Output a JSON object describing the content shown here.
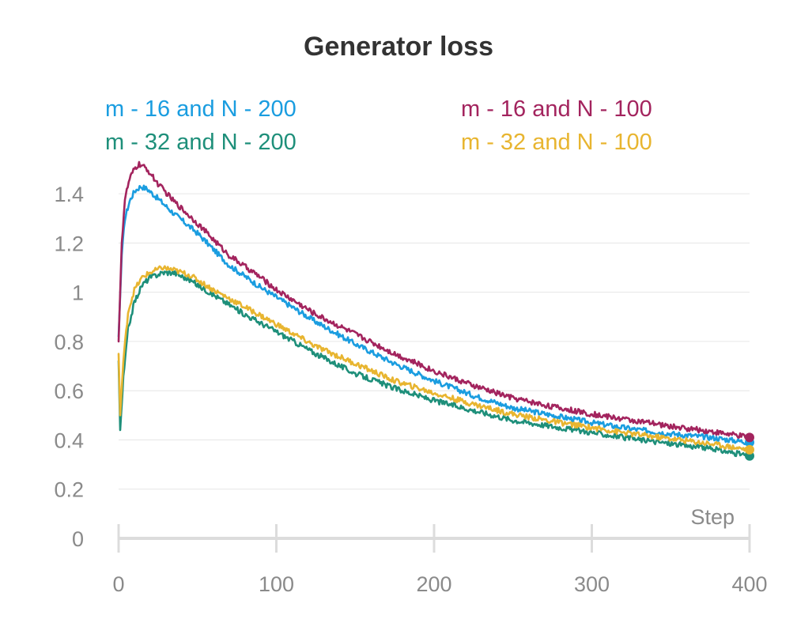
{
  "chart_data": {
    "type": "line",
    "title": "Generator loss",
    "xlabel": "Step",
    "ylabel": "",
    "xlim": [
      0,
      400
    ],
    "ylim": [
      0,
      1.5
    ],
    "x_ticks": [
      0,
      100,
      200,
      300,
      400
    ],
    "y_ticks": [
      0,
      0.2,
      0.4,
      0.6,
      0.8,
      1,
      1.2,
      1.4
    ],
    "x_tick_labels": [
      "0",
      "100",
      "200",
      "300",
      "400"
    ],
    "y_tick_labels": [
      "0",
      "0.2",
      "0.4",
      "0.6",
      "0.8",
      "1",
      "1.2",
      "1.4"
    ],
    "grid": true,
    "legend_position": "top",
    "series": [
      {
        "name": "m - 16 and N - 200",
        "color": "#1a9de0",
        "points": [
          [
            0,
            0.82
          ],
          [
            2,
            1.15
          ],
          [
            4,
            1.3
          ],
          [
            7,
            1.37
          ],
          [
            10,
            1.41
          ],
          [
            14,
            1.43
          ],
          [
            18,
            1.42
          ],
          [
            25,
            1.38
          ],
          [
            35,
            1.32
          ],
          [
            50,
            1.24
          ],
          [
            70,
            1.11
          ],
          [
            90,
            1.02
          ],
          [
            100,
            0.98
          ],
          [
            125,
            0.88
          ],
          [
            150,
            0.79
          ],
          [
            175,
            0.71
          ],
          [
            200,
            0.64
          ],
          [
            225,
            0.58
          ],
          [
            250,
            0.53
          ],
          [
            275,
            0.5
          ],
          [
            300,
            0.47
          ],
          [
            325,
            0.445
          ],
          [
            350,
            0.425
          ],
          [
            375,
            0.41
          ],
          [
            400,
            0.39
          ]
        ]
      },
      {
        "name": "m - 16 and N - 100",
        "color": "#a3245e",
        "points": [
          [
            0,
            0.8
          ],
          [
            2,
            1.2
          ],
          [
            4,
            1.38
          ],
          [
            7,
            1.46
          ],
          [
            10,
            1.5
          ],
          [
            13,
            1.52
          ],
          [
            18,
            1.5
          ],
          [
            25,
            1.44
          ],
          [
            35,
            1.37
          ],
          [
            50,
            1.28
          ],
          [
            70,
            1.15
          ],
          [
            90,
            1.06
          ],
          [
            100,
            1.01
          ],
          [
            125,
            0.91
          ],
          [
            150,
            0.83
          ],
          [
            175,
            0.75
          ],
          [
            200,
            0.68
          ],
          [
            225,
            0.62
          ],
          [
            250,
            0.57
          ],
          [
            275,
            0.535
          ],
          [
            300,
            0.505
          ],
          [
            325,
            0.48
          ],
          [
            350,
            0.455
          ],
          [
            375,
            0.435
          ],
          [
            400,
            0.41
          ]
        ]
      },
      {
        "name": "m - 32 and N - 200",
        "color": "#1e8f7a",
        "points": [
          [
            0,
            0.72
          ],
          [
            1,
            0.44
          ],
          [
            3,
            0.65
          ],
          [
            6,
            0.85
          ],
          [
            10,
            0.96
          ],
          [
            15,
            1.03
          ],
          [
            20,
            1.06
          ],
          [
            28,
            1.08
          ],
          [
            35,
            1.08
          ],
          [
            45,
            1.05
          ],
          [
            60,
            0.99
          ],
          [
            80,
            0.91
          ],
          [
            100,
            0.84
          ],
          [
            125,
            0.75
          ],
          [
            150,
            0.67
          ],
          [
            175,
            0.61
          ],
          [
            200,
            0.56
          ],
          [
            225,
            0.52
          ],
          [
            250,
            0.48
          ],
          [
            275,
            0.455
          ],
          [
            300,
            0.43
          ],
          [
            325,
            0.405
          ],
          [
            350,
            0.385
          ],
          [
            375,
            0.365
          ],
          [
            400,
            0.335
          ]
        ]
      },
      {
        "name": "m - 32 and N - 100",
        "color": "#e8b530",
        "points": [
          [
            0,
            0.75
          ],
          [
            1,
            0.5
          ],
          [
            3,
            0.72
          ],
          [
            6,
            0.92
          ],
          [
            10,
            1.01
          ],
          [
            15,
            1.06
          ],
          [
            20,
            1.08
          ],
          [
            28,
            1.1
          ],
          [
            35,
            1.09
          ],
          [
            45,
            1.07
          ],
          [
            60,
            1.01
          ],
          [
            80,
            0.94
          ],
          [
            100,
            0.87
          ],
          [
            125,
            0.78
          ],
          [
            150,
            0.71
          ],
          [
            175,
            0.64
          ],
          [
            200,
            0.59
          ],
          [
            225,
            0.545
          ],
          [
            250,
            0.505
          ],
          [
            275,
            0.475
          ],
          [
            300,
            0.45
          ],
          [
            325,
            0.425
          ],
          [
            350,
            0.405
          ],
          [
            375,
            0.385
          ],
          [
            400,
            0.36
          ]
        ]
      }
    ]
  }
}
